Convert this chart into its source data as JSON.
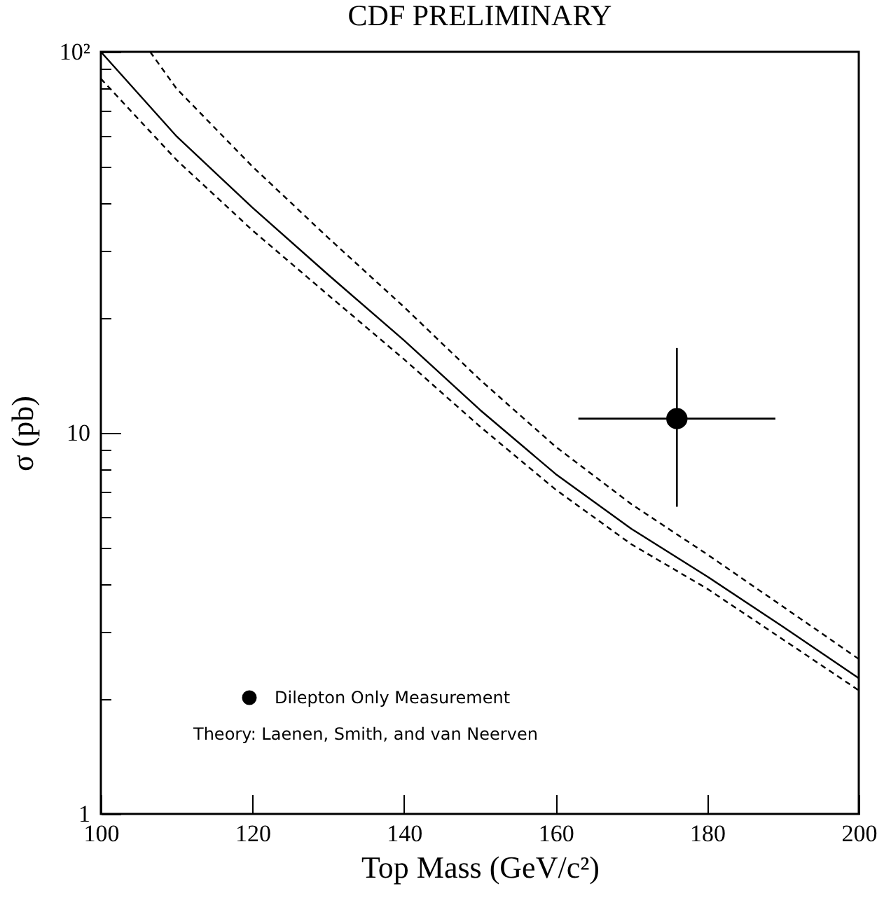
{
  "chart_data": {
    "type": "line",
    "title": "CDF PRELIMINARY",
    "xlabel": "Top Mass (GeV/c²)",
    "ylabel": "σ (pb)",
    "annotations": [
      "Theory: Laenen, Smith, and van Neerven"
    ],
    "xlim": [
      100,
      200
    ],
    "xticks": [
      100,
      120,
      140,
      160,
      180,
      200
    ],
    "ylim": [
      1,
      100
    ],
    "yticks": [
      1,
      {
        "value": 2,
        "label": null
      },
      {
        "value": 3,
        "label": null
      },
      {
        "value": 4,
        "label": null
      },
      {
        "value": 5,
        "label": null
      },
      {
        "value": 6,
        "label": null
      },
      {
        "value": 7,
        "label": null
      },
      {
        "value": 8,
        "label": null
      },
      {
        "value": 9,
        "label": null
      },
      10,
      {
        "value": 20,
        "label": null
      },
      {
        "value": 30,
        "label": null
      },
      {
        "value": 40,
        "label": null
      },
      {
        "value": 50,
        "label": null
      },
      {
        "value": 60,
        "label": null
      },
      {
        "value": 70,
        "label": null
      },
      {
        "value": 80,
        "label": null
      },
      {
        "value": 90,
        "label": null
      },
      {
        "value": 100,
        "label": "10²"
      }
    ],
    "log": "y",
    "grid": false,
    "legend": "bottom left",
    "series": [
      {
        "color": "#000000",
        "line_style": "solid",
        "x": [
          100,
          110,
          120,
          130,
          140,
          150,
          160,
          170,
          180,
          190,
          200
        ],
        "values": [
          100,
          60,
          39,
          26,
          17.5,
          11.5,
          7.8,
          5.6,
          4.2,
          3.1,
          2.27
        ]
      },
      {
        "color": "#000000",
        "line_style": "dashed",
        "x": [
          106.5,
          110,
          120,
          130,
          140,
          150,
          160,
          170,
          180,
          190,
          200
        ],
        "values": [
          100,
          80,
          50,
          32.5,
          21.4,
          13.8,
          9.2,
          6.5,
          4.8,
          3.5,
          2.55
        ]
      },
      {
        "color": "#000000",
        "line_style": "dashed",
        "x": [
          100,
          110,
          120,
          130,
          140,
          150,
          160,
          170,
          180,
          190,
          200
        ],
        "values": [
          85,
          52,
          34,
          23,
          15.6,
          10.4,
          7.1,
          5.1,
          3.9,
          2.87,
          2.11
        ]
      },
      {
        "type": "scatter",
        "name": "Dilepton Only Measurement",
        "color": "#000000",
        "marker": "circle",
        "x": [
          176
        ],
        "values": [
          10.9
        ],
        "xerrors": [
          13
        ],
        "errors": [
          [
            6.4,
            16.7
          ]
        ]
      }
    ]
  }
}
